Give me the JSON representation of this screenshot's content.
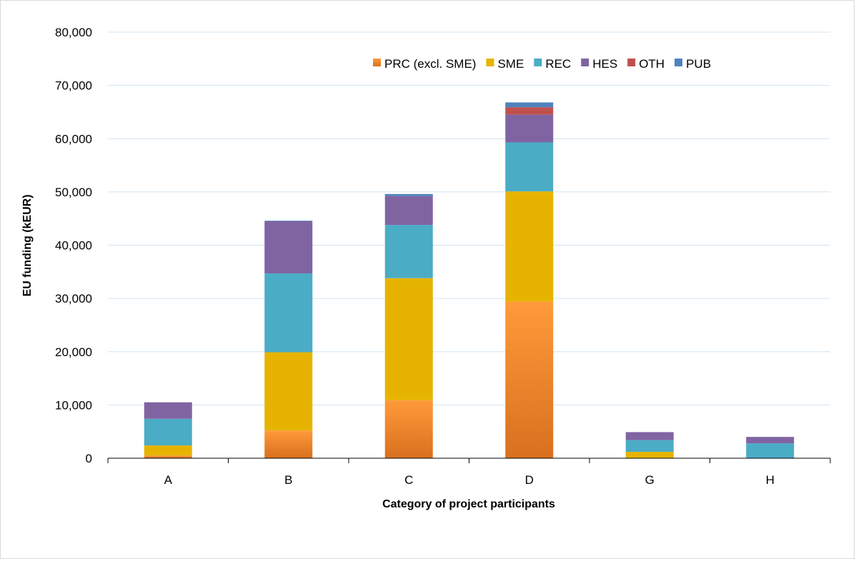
{
  "chart_data": {
    "type": "bar",
    "stacked": true,
    "title": "",
    "xlabel": "Category of  project participants",
    "ylabel": "EU funding (kEUR)",
    "categories": [
      "A",
      "B",
      "C",
      "D",
      "G",
      "H"
    ],
    "ylim": [
      0,
      80000
    ],
    "yticks": [
      0,
      10000,
      20000,
      30000,
      40000,
      50000,
      60000,
      70000,
      80000
    ],
    "ytick_labels": [
      "0",
      "10,000",
      "20,000",
      "30,000",
      "40,000",
      "50,000",
      "60,000",
      "70,000",
      "80,000"
    ],
    "grid": true,
    "legend_position": "top-right",
    "series": [
      {
        "name": "PRC (excl. SME)",
        "color": "#f79646",
        "values": [
          500,
          5200,
          10900,
          29400,
          0,
          0
        ]
      },
      {
        "name": "SME",
        "color": "#e6b400",
        "values": [
          1900,
          14700,
          22900,
          20700,
          1200,
          0
        ]
      },
      {
        "name": "REC",
        "color": "#4bacc6",
        "values": [
          5000,
          14800,
          10000,
          9200,
          2200,
          2800
        ]
      },
      {
        "name": "HES",
        "color": "#8064a2",
        "values": [
          3100,
          9800,
          5400,
          5200,
          1500,
          1200
        ]
      },
      {
        "name": "OTH",
        "color": "#c0504d",
        "values": [
          0,
          0,
          0,
          1400,
          0,
          0
        ]
      },
      {
        "name": "PUB",
        "color": "#4f81bd",
        "values": [
          0,
          100,
          400,
          900,
          0,
          0
        ]
      }
    ]
  }
}
